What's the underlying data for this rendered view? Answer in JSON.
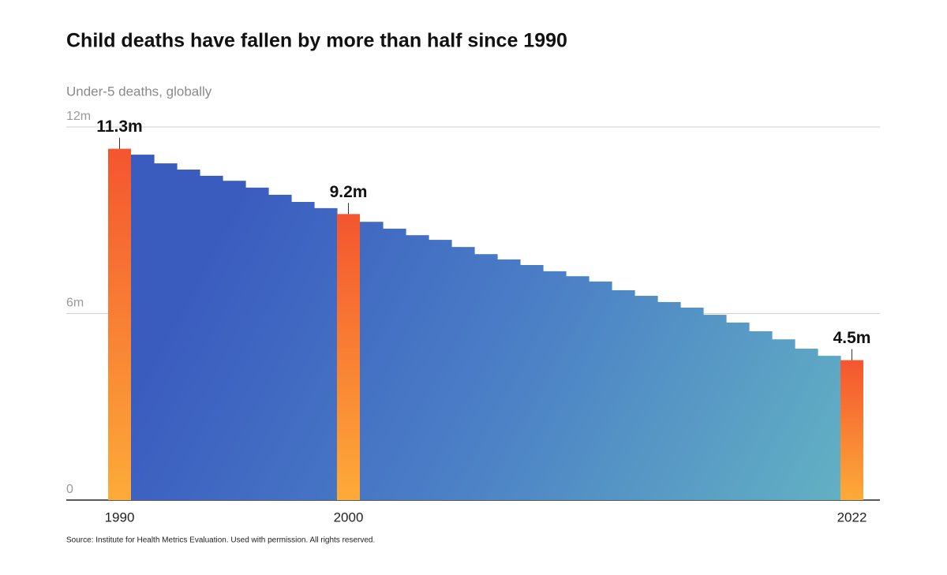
{
  "chart_data": {
    "type": "bar",
    "title": "Child deaths have fallen by more than half since 1990",
    "subtitle": "Under-5 deaths, globally",
    "source": "Source: Institute for Health Metrics Evaluation. Used with permission. All rights reserved.",
    "categories": [
      "1990",
      null,
      null,
      null,
      null,
      null,
      null,
      null,
      null,
      null,
      "2000",
      null,
      null,
      null,
      null,
      null,
      null,
      null,
      null,
      null,
      null,
      null,
      null,
      null,
      null,
      null,
      null,
      null,
      null,
      null,
      null,
      null,
      "2022"
    ],
    "values": [
      11.3,
      11.11,
      10.83,
      10.63,
      10.43,
      10.27,
      10.05,
      9.82,
      9.59,
      9.39,
      9.2,
      8.95,
      8.73,
      8.52,
      8.37,
      8.14,
      7.91,
      7.74,
      7.56,
      7.36,
      7.2,
      7.03,
      6.75,
      6.57,
      6.37,
      6.19,
      5.96,
      5.71,
      5.43,
      5.17,
      4.87,
      4.64,
      4.5
    ],
    "value_labels": [
      "11.3m",
      null,
      null,
      null,
      null,
      null,
      null,
      null,
      null,
      null,
      "9.2m",
      null,
      null,
      null,
      null,
      null,
      null,
      null,
      null,
      null,
      null,
      null,
      null,
      null,
      null,
      null,
      null,
      null,
      null,
      null,
      null,
      null,
      "4.5m"
    ],
    "color": "#3a5cbf",
    "highlight_color": "#f4552f",
    "ylim": [
      0,
      12
    ],
    "yticks": [
      0,
      {
        "value": 6,
        "label": "6m"
      },
      {
        "value": 12,
        "label": "12m"
      }
    ],
    "grid": true
  }
}
